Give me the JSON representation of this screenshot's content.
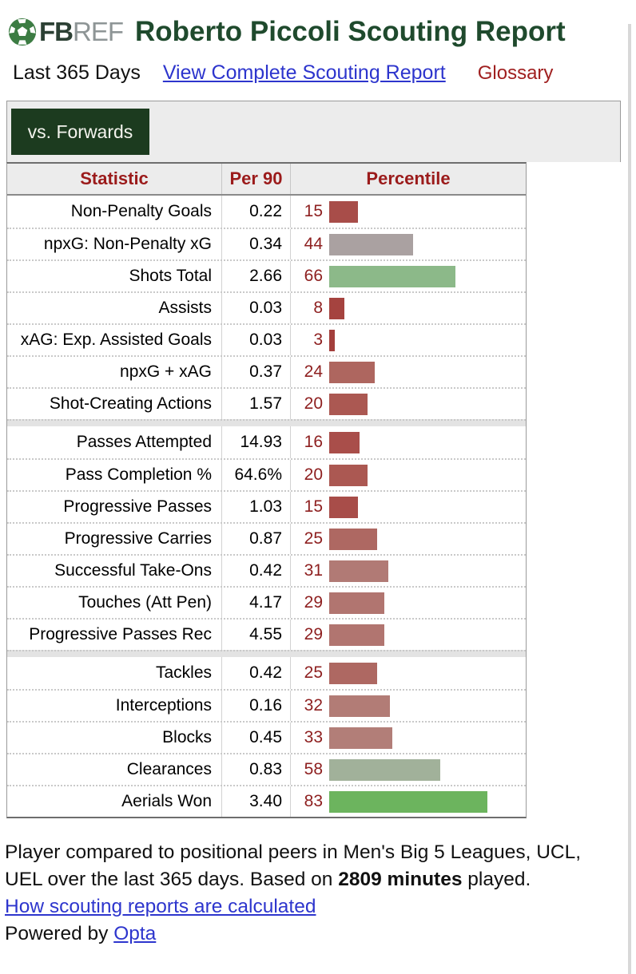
{
  "colors": {
    "title_green": "#1f4a2d",
    "brand_fb": "#2c4034",
    "brand_ref": "#8e9596",
    "ball_green": "#3c7c43",
    "link_blue": "#2d35cd",
    "maroon": "#9b1b1b",
    "pct_num": "#8e2020",
    "tab_bg": "#1c3b1f",
    "tab_text": "#f4f4ee",
    "strip_bg": "#ececec"
  },
  "header": {
    "brand_fb": "FB",
    "brand_ref": "REF",
    "title": "Roberto Piccoli Scouting Report"
  },
  "subnav": {
    "period": "Last 365 Days",
    "complete_report_link": "View Complete Scouting Report",
    "glossary_link": "Glossary"
  },
  "tab": {
    "label": "vs. Forwards"
  },
  "table": {
    "columns": {
      "stat": "Statistic",
      "per90": "Per 90",
      "percentile": "Percentile"
    },
    "sections": [
      {
        "rows": [
          {
            "stat": "Non-Penalty Goals",
            "per90": "0.22",
            "percentile": 15,
            "bar_color": "#a84d49"
          },
          {
            "stat": "npxG: Non-Penalty xG",
            "per90": "0.34",
            "percentile": 44,
            "bar_color": "#aaa1a1"
          },
          {
            "stat": "Shots Total",
            "per90": "2.66",
            "percentile": 66,
            "bar_color": "#8cb989"
          },
          {
            "stat": "Assists",
            "per90": "0.03",
            "percentile": 8,
            "bar_color": "#a5433f"
          },
          {
            "stat": "xAG: Exp. Assisted Goals",
            "per90": "0.03",
            "percentile": 3,
            "bar_color": "#a33f3c"
          },
          {
            "stat": "npxG + xAG",
            "per90": "0.37",
            "percentile": 24,
            "bar_color": "#ae665f"
          },
          {
            "stat": "Shot-Creating Actions",
            "per90": "1.57",
            "percentile": 20,
            "bar_color": "#ab5852"
          }
        ]
      },
      {
        "rows": [
          {
            "stat": "Passes Attempted",
            "per90": "14.93",
            "percentile": 16,
            "bar_color": "#a94e4a"
          },
          {
            "stat": "Pass Completion %",
            "per90": "64.6%",
            "percentile": 20,
            "bar_color": "#ab5852"
          },
          {
            "stat": "Progressive Passes",
            "per90": "1.03",
            "percentile": 15,
            "bar_color": "#a84d49"
          },
          {
            "stat": "Progressive Carries",
            "per90": "0.87",
            "percentile": 25,
            "bar_color": "#ae6862"
          },
          {
            "stat": "Successful Take-Ons",
            "per90": "0.42",
            "percentile": 31,
            "bar_color": "#b17a75"
          },
          {
            "stat": "Touches (Att Pen)",
            "per90": "4.17",
            "percentile": 29,
            "bar_color": "#b17570"
          },
          {
            "stat": "Progressive Passes Rec",
            "per90": "4.55",
            "percentile": 29,
            "bar_color": "#b17570"
          }
        ]
      },
      {
        "rows": [
          {
            "stat": "Tackles",
            "per90": "0.42",
            "percentile": 25,
            "bar_color": "#ae6862"
          },
          {
            "stat": "Interceptions",
            "per90": "0.16",
            "percentile": 32,
            "bar_color": "#b27c76"
          },
          {
            "stat": "Blocks",
            "per90": "0.45",
            "percentile": 33,
            "bar_color": "#b27e78"
          },
          {
            "stat": "Clearances",
            "per90": "0.83",
            "percentile": 58,
            "bar_color": "#a1b19a"
          },
          {
            "stat": "Aerials Won",
            "per90": "3.40",
            "percentile": 83,
            "bar_color": "#6cb45e"
          }
        ]
      }
    ]
  },
  "footer": {
    "line1": "Player compared to positional peers in Men's Big 5 Leagues, UCL,",
    "line2_before_bold": "UEL over the last 365 days. Based on ",
    "minutes_bold": "2809 minutes",
    "line2_after_bold": " played.",
    "calc_link": "How scouting reports are calculated",
    "powered_by_label": "Powered by ",
    "opta_link": "Opta"
  }
}
